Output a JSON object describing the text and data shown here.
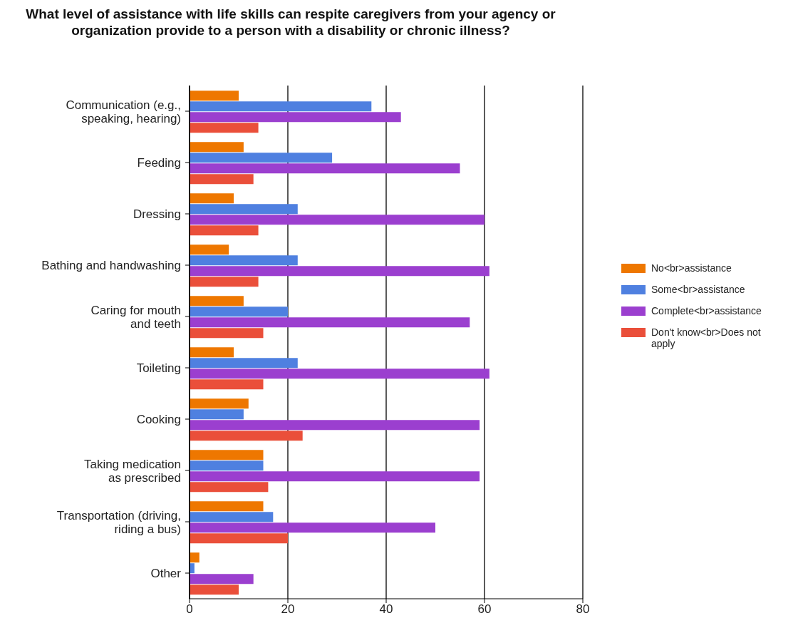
{
  "chart_data": {
    "type": "bar",
    "orientation": "horizontal",
    "title": "What level of assistance with life skills can respite caregivers from your agency or organization provide to a person with a disability or chronic illness?",
    "categories": [
      "Communication (e.g.,\nspeaking, hearing)",
      "Feeding",
      "Dressing",
      "Bathing and handwashing",
      "Caring for mouth\nand teeth",
      "Toileting",
      "Cooking",
      "Taking medication\nas prescribed",
      "Transportation (driving,\nriding a bus)",
      "Other"
    ],
    "series": [
      {
        "name": "No<br>assistance",
        "color": "#ee7700",
        "values": [
          10,
          11,
          9,
          8,
          11,
          9,
          12,
          15,
          15,
          2
        ]
      },
      {
        "name": "Some<br>assistance",
        "color": "#4f80e0",
        "values": [
          37,
          29,
          22,
          22,
          20,
          22,
          11,
          15,
          17,
          1
        ]
      },
      {
        "name": "Complete<br>assistance",
        "color": "#9b3fcf",
        "values": [
          43,
          55,
          60,
          61,
          57,
          61,
          59,
          59,
          50,
          13
        ]
      },
      {
        "name": "Don't know<br>Does not apply",
        "color": "#ea4f3a",
        "values": [
          14,
          13,
          14,
          14,
          15,
          15,
          23,
          16,
          20,
          10
        ]
      }
    ],
    "xlim": [
      0,
      80
    ],
    "xticks": [
      0,
      20,
      40,
      60,
      80
    ],
    "grid": "x",
    "legend": "right"
  }
}
